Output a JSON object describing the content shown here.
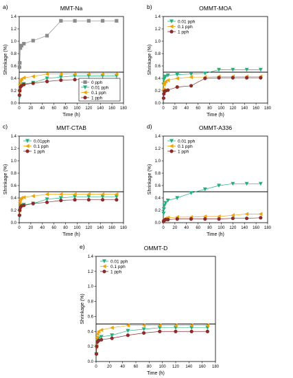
{
  "chart_data": [
    {
      "type": "line",
      "panel_label": "a)",
      "title": "MMT-Na",
      "xlabel": "Time (h)",
      "ylabel": "Shrinkage (%)",
      "xlim": [
        0,
        180
      ],
      "ylim": [
        0,
        1.4
      ],
      "xticks": [
        0,
        20,
        40,
        60,
        80,
        100,
        120,
        140,
        160,
        180
      ],
      "yticks": [
        0.0,
        0.2,
        0.4,
        0.6,
        0.8,
        1.0,
        1.2,
        1.4
      ],
      "ytick_labels": [
        "0.0",
        "0.2",
        "0.4",
        "0.6",
        "0.8",
        "1.0",
        "1.2",
        "1.4"
      ],
      "reference_line_y": 0.5,
      "legend_position": "lower-right",
      "series": [
        {
          "name": "0 pph",
          "color": "#8c8c8c",
          "marker": "square",
          "x": [
            0.5,
            1,
            2,
            4,
            8,
            24,
            48,
            72,
            96,
            120,
            144,
            168
          ],
          "y": [
            0.58,
            0.65,
            0.89,
            0.93,
            0.96,
            1.01,
            1.09,
            1.33,
            1.33,
            1.33,
            1.33,
            1.33
          ]
        },
        {
          "name": "0.01 pph",
          "color": "#20b27a",
          "marker": "triangle-down",
          "x": [
            0.5,
            1,
            2,
            4,
            8,
            24,
            48,
            72,
            96,
            120,
            144,
            168
          ],
          "y": [
            0.1,
            0.2,
            0.27,
            0.3,
            0.31,
            0.33,
            0.4,
            0.42,
            0.44,
            0.44,
            0.44,
            0.44
          ]
        },
        {
          "name": "0.1 pph",
          "color": "#f0a30a",
          "marker": "triangle-left",
          "x": [
            0.5,
            1,
            2,
            4,
            8,
            24,
            48,
            72,
            96,
            120,
            144,
            168
          ],
          "y": [
            0.2,
            0.3,
            0.36,
            0.39,
            0.41,
            0.43,
            0.47,
            0.47,
            0.47,
            0.47,
            0.47,
            0.47
          ]
        },
        {
          "name": "1 pph",
          "color": "#8b2b2b",
          "marker": "circle",
          "x": [
            0.5,
            1,
            2,
            4,
            8,
            24,
            48,
            72,
            96,
            120,
            144,
            168
          ],
          "y": [
            0.13,
            0.2,
            0.26,
            0.28,
            0.3,
            0.32,
            0.35,
            0.37,
            0.38,
            0.38,
            0.38,
            0.38
          ]
        }
      ]
    },
    {
      "type": "line",
      "panel_label": "b)",
      "title": "OMMT-MOA",
      "xlabel": "Time (h)",
      "ylabel": "Shrinkage (%)",
      "xlim": [
        0,
        180
      ],
      "ylim": [
        0,
        1.4
      ],
      "xticks": [
        0,
        20,
        40,
        60,
        80,
        100,
        120,
        140,
        160,
        180
      ],
      "yticks": [
        0.0,
        0.2,
        0.4,
        0.6,
        0.8,
        1.0,
        1.2,
        1.4
      ],
      "ytick_labels": [
        "0.0",
        "0.2",
        "0.4",
        "0.6",
        "0.8",
        "1.0",
        "1.2",
        "1.4"
      ],
      "reference_line_y": 0.5,
      "legend_position": "top-left",
      "series": [
        {
          "name": "0.01 pph",
          "color": "#20b27a",
          "marker": "triangle-down",
          "x": [
            0.5,
            1,
            2,
            4,
            8,
            24,
            48,
            72,
            96,
            120,
            144,
            168
          ],
          "y": [
            0.3,
            0.38,
            0.41,
            0.43,
            0.45,
            0.46,
            0.47,
            0.48,
            0.54,
            0.54,
            0.54,
            0.54
          ]
        },
        {
          "name": "0.1 pph",
          "color": "#f0a30a",
          "marker": "triangle-left",
          "x": [
            0.5,
            1,
            2,
            4,
            8,
            24,
            48,
            72,
            96,
            120,
            144,
            168
          ],
          "y": [
            0.22,
            0.3,
            0.33,
            0.35,
            0.37,
            0.4,
            0.42,
            0.42,
            0.43,
            0.43,
            0.43,
            0.43
          ]
        },
        {
          "name": "1 pph",
          "color": "#8b2b2b",
          "marker": "circle",
          "x": [
            0.5,
            1,
            2,
            4,
            8,
            24,
            48,
            72,
            96,
            120,
            144,
            168
          ],
          "y": [
            0.08,
            0.15,
            0.19,
            0.2,
            0.21,
            0.26,
            0.28,
            0.4,
            0.41,
            0.41,
            0.41,
            0.41
          ]
        }
      ]
    },
    {
      "type": "line",
      "panel_label": "c)",
      "title": "MMT-CTAB",
      "xlabel": "Time (h)",
      "ylabel": "Shrinkage (%)",
      "xlim": [
        0,
        180
      ],
      "ylim": [
        0,
        1.4
      ],
      "xticks": [
        0,
        20,
        40,
        60,
        80,
        100,
        120,
        140,
        160,
        180
      ],
      "yticks": [
        0.0,
        0.2,
        0.4,
        0.6,
        0.8,
        1.0,
        1.2,
        1.4
      ],
      "ytick_labels": [
        "0.0",
        "0.2",
        "0.4",
        "0.6",
        "0.8",
        "1.0",
        "1.2",
        "1.4"
      ],
      "reference_line_y": 0.5,
      "legend_position": "top-left",
      "series": [
        {
          "name": "0.01pph",
          "color": "#20b27a",
          "marker": "triangle-down",
          "x": [
            0.5,
            1,
            2,
            4,
            8,
            24,
            48,
            72,
            96,
            120,
            144,
            168
          ],
          "y": [
            0.1,
            0.2,
            0.26,
            0.28,
            0.29,
            0.31,
            0.38,
            0.4,
            0.42,
            0.42,
            0.42,
            0.42
          ]
        },
        {
          "name": "0.1 pph",
          "color": "#f0a30a",
          "marker": "triangle-left",
          "x": [
            0.5,
            1,
            2,
            4,
            8,
            24,
            48,
            72,
            96,
            120,
            144,
            168
          ],
          "y": [
            0.2,
            0.33,
            0.38,
            0.4,
            0.41,
            0.43,
            0.46,
            0.46,
            0.46,
            0.46,
            0.46,
            0.46
          ]
        },
        {
          "name": "1 pph",
          "color": "#8b2b2b",
          "marker": "circle",
          "x": [
            0.5,
            1,
            2,
            4,
            8,
            24,
            48,
            72,
            96,
            120,
            144,
            168
          ],
          "y": [
            0.12,
            0.2,
            0.25,
            0.27,
            0.28,
            0.31,
            0.33,
            0.36,
            0.37,
            0.37,
            0.37,
            0.37
          ]
        }
      ]
    },
    {
      "type": "line",
      "panel_label": "d)",
      "title": "OMMT-A336",
      "xlabel": "Time (h)",
      "ylabel": "Shrinkage (%)",
      "xlim": [
        0,
        180
      ],
      "ylim": [
        0,
        1.4
      ],
      "xticks": [
        0,
        20,
        40,
        60,
        80,
        100,
        120,
        140,
        160,
        180
      ],
      "yticks": [
        0.0,
        0.2,
        0.4,
        0.6,
        0.8,
        1.0,
        1.2,
        1.4
      ],
      "ytick_labels": [
        "0.0",
        "0.2",
        "0.4",
        "0.6",
        "0.8",
        "1.0",
        "1.2",
        "1.4"
      ],
      "reference_line_y": 0.5,
      "legend_position": "top-left",
      "series": [
        {
          "name": "0.01 pph",
          "color": "#20b27a",
          "marker": "triangle-down",
          "x": [
            0.5,
            1,
            2,
            4,
            8,
            24,
            48,
            72,
            96,
            120,
            144,
            168
          ],
          "y": [
            0.15,
            0.22,
            0.28,
            0.32,
            0.36,
            0.4,
            0.48,
            0.54,
            0.6,
            0.63,
            0.63,
            0.63
          ]
        },
        {
          "name": "0.1 pph",
          "color": "#f0a30a",
          "marker": "triangle-left",
          "x": [
            0.5,
            1,
            2,
            4,
            8,
            24,
            48,
            72,
            96,
            120,
            144,
            168
          ],
          "y": [
            0.03,
            0.05,
            0.06,
            0.07,
            0.08,
            0.09,
            0.09,
            0.1,
            0.1,
            0.12,
            0.14,
            0.14
          ]
        },
        {
          "name": "1 pph",
          "color": "#8b2b2b",
          "marker": "circle",
          "x": [
            0.5,
            1,
            2,
            4,
            8,
            24,
            48,
            72,
            96,
            120,
            144,
            168
          ],
          "y": [
            0.02,
            0.03,
            0.04,
            0.05,
            0.05,
            0.06,
            0.06,
            0.06,
            0.06,
            0.07,
            0.07,
            0.08
          ]
        }
      ]
    },
    {
      "type": "line",
      "panel_label": "e)",
      "title": "OMMT-D",
      "xlabel": "Time (h)",
      "ylabel": "Shrinkage (%)",
      "xlim": [
        0,
        180
      ],
      "ylim": [
        0,
        1.4
      ],
      "xticks": [
        0,
        20,
        40,
        60,
        80,
        100,
        120,
        140,
        160,
        180
      ],
      "yticks": [
        0.0,
        0.2,
        0.4,
        0.6,
        0.8,
        1.0,
        1.2,
        1.4
      ],
      "ytick_labels": [
        "0.0",
        "0.2",
        "0.4",
        "0.6",
        "0.8",
        "1.0",
        "1.2",
        "1.4"
      ],
      "reference_line_y": 0.5,
      "legend_position": "top-left",
      "series": [
        {
          "name": "0.01 pph",
          "color": "#20b27a",
          "marker": "triangle-down",
          "x": [
            0.5,
            1,
            2,
            4,
            8,
            24,
            48,
            72,
            96,
            120,
            144,
            168
          ],
          "y": [
            0.1,
            0.2,
            0.28,
            0.31,
            0.33,
            0.35,
            0.41,
            0.43,
            0.45,
            0.45,
            0.45,
            0.45
          ]
        },
        {
          "name": "0.1 pph",
          "color": "#f0a30a",
          "marker": "triangle-left",
          "x": [
            0.5,
            1,
            2,
            4,
            8,
            24,
            48,
            72,
            96,
            120,
            144,
            168
          ],
          "y": [
            0.2,
            0.32,
            0.37,
            0.4,
            0.42,
            0.45,
            0.48,
            0.48,
            0.48,
            0.48,
            0.48,
            0.48
          ]
        },
        {
          "name": "1 pph",
          "color": "#8b2b2b",
          "marker": "circle",
          "x": [
            0.5,
            1,
            2,
            4,
            8,
            24,
            48,
            72,
            96,
            120,
            144,
            168
          ],
          "y": [
            0.1,
            0.2,
            0.26,
            0.28,
            0.29,
            0.31,
            0.35,
            0.38,
            0.4,
            0.4,
            0.4,
            0.4
          ]
        }
      ]
    }
  ]
}
